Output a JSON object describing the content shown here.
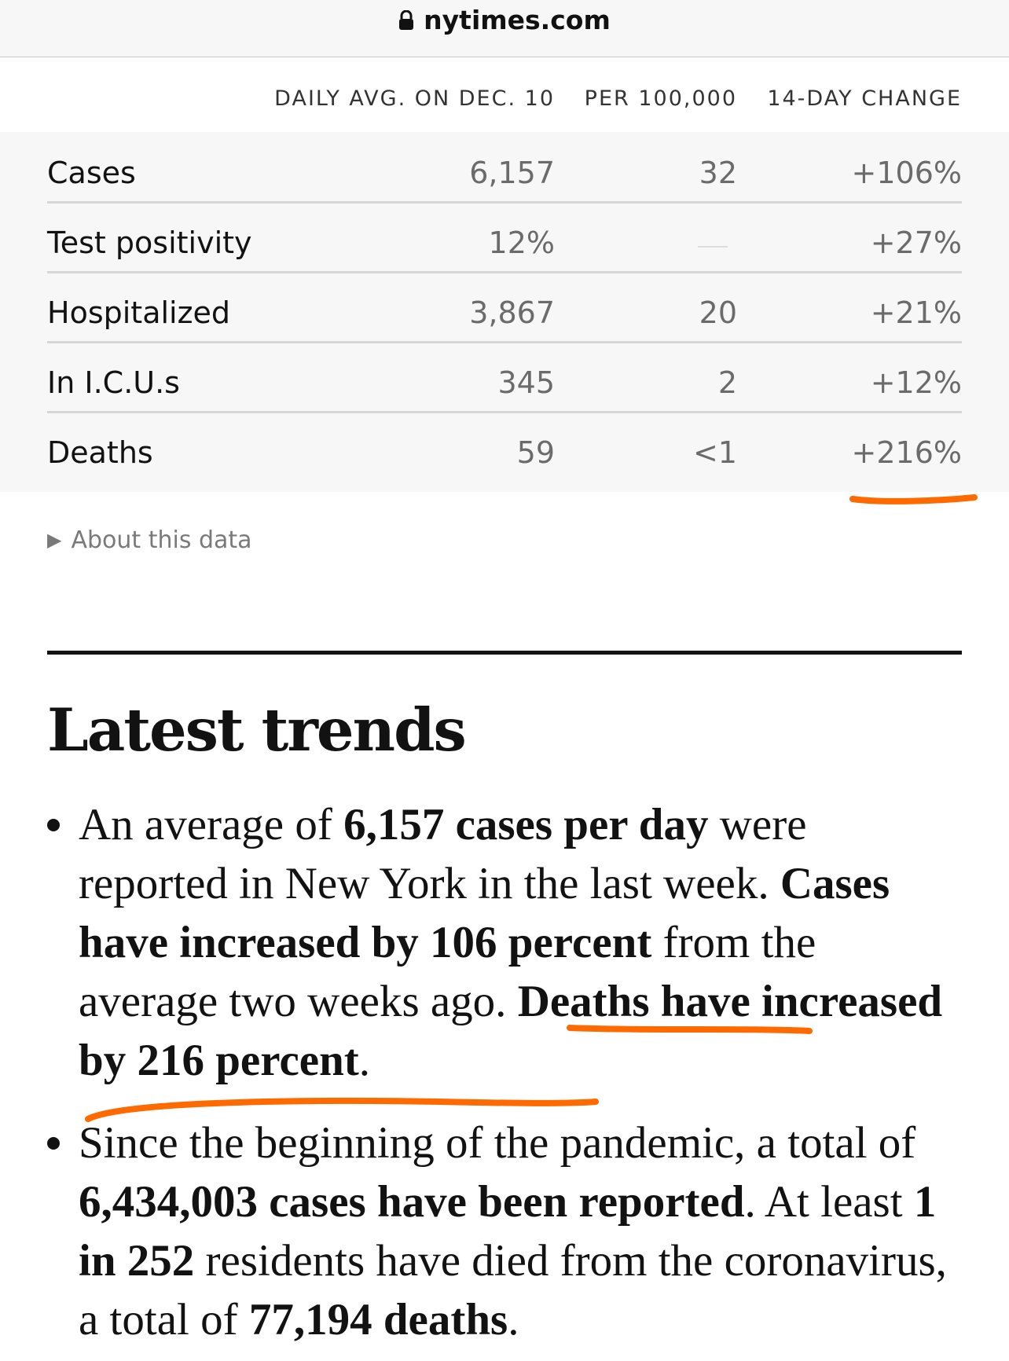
{
  "browser": {
    "url": "nytimes.com"
  },
  "table": {
    "headers": [
      "DAILY AVG. ON DEC. 10",
      "PER 100,000",
      "14-DAY CHANGE"
    ],
    "rows": [
      {
        "label": "Cases",
        "daily_avg": "6,157",
        "per_100k": "32",
        "change": "+106%"
      },
      {
        "label": "Test positivity",
        "daily_avg": "12%",
        "per_100k": "",
        "change": "+27%"
      },
      {
        "label": "Hospitalized",
        "daily_avg": "3,867",
        "per_100k": "20",
        "change": "+21%"
      },
      {
        "label": "In I.C.U.s",
        "daily_avg": "345",
        "per_100k": "2",
        "change": "+12%"
      },
      {
        "label": "Deaths",
        "daily_avg": "59",
        "per_100k": "<1",
        "change": "+216%"
      }
    ]
  },
  "about_link": "About this data",
  "section": {
    "heading": "Latest trends",
    "bullet1": {
      "t1": "An average of ",
      "b1": "6,157 cases per day",
      "t2": " were reported in New York in the last week. ",
      "b2": "Cases have increased by 106 percent",
      "t3": " from the average two weeks ago. ",
      "b3": "Deaths have increased by 216 percent",
      "t4": "."
    },
    "bullet2": {
      "t1": "Since the beginning of the pandemic, a total of ",
      "b1": "6,434,003 cases have been reported",
      "t2": ". At least ",
      "b2": "1 in 252",
      "t3": " residents have died from the coronavirus, a total of ",
      "b3": "77,194 deaths",
      "t4": "."
    }
  },
  "colors": {
    "annotation": "#ff6a00",
    "table_bg": "#f7f7f7",
    "text": "#121212",
    "muted": "#6b6b6b"
  },
  "icons": [
    "lock-icon",
    "disclosure-triangle-icon"
  ]
}
